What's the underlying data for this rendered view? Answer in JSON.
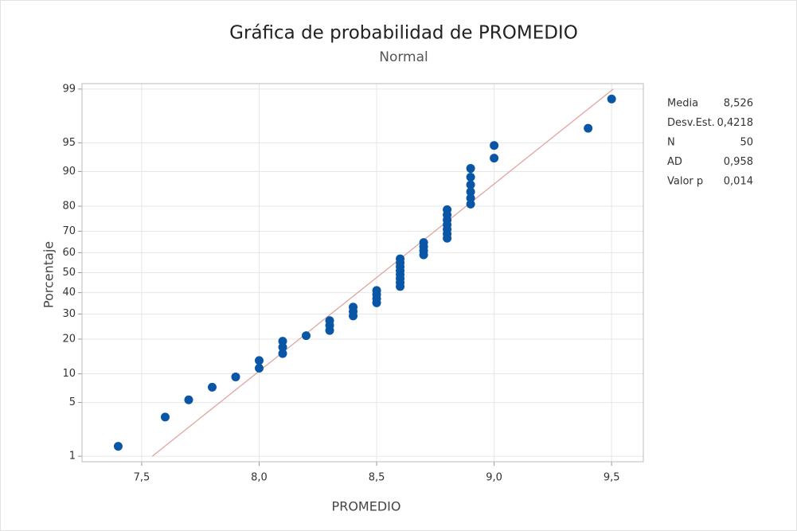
{
  "chart_data": {
    "type": "probability",
    "title": "Gráfica de probabilidad de PROMEDIO",
    "subtitle": "Normal",
    "x_label": "PROMEDIO",
    "y_label": "Porcentaje",
    "x": [
      7.4,
      7.6,
      7.7,
      7.8,
      7.9,
      8.0,
      8.0,
      8.1,
      8.1,
      8.1,
      8.2,
      8.3,
      8.3,
      8.3,
      8.4,
      8.4,
      8.4,
      8.5,
      8.5,
      8.5,
      8.5,
      8.6,
      8.6,
      8.6,
      8.6,
      8.6,
      8.6,
      8.6,
      8.6,
      8.7,
      8.7,
      8.7,
      8.7,
      8.8,
      8.8,
      8.8,
      8.8,
      8.8,
      8.8,
      8.8,
      8.9,
      8.9,
      8.9,
      8.9,
      8.9,
      8.9,
      9.0,
      9.0,
      9.4,
      9.5
    ],
    "values": [
      1.39,
      3.37,
      5.36,
      7.34,
      9.33,
      11.31,
      13.29,
      15.28,
      17.26,
      19.25,
      21.23,
      23.21,
      25.2,
      27.18,
      29.17,
      31.15,
      33.13,
      35.12,
      37.1,
      39.09,
      41.07,
      43.06,
      45.04,
      47.02,
      49.01,
      50.99,
      52.98,
      54.96,
      56.94,
      58.93,
      60.91,
      62.9,
      64.88,
      66.87,
      68.85,
      70.83,
      72.82,
      74.8,
      76.79,
      78.77,
      80.75,
      82.74,
      84.72,
      86.71,
      88.69,
      90.67,
      92.66,
      94.64,
      96.63,
      98.61
    ],
    "color": "#0a56a6",
    "fit_line": {
      "x": [
        7.545,
        9.507
      ],
      "values": [
        1,
        99
      ],
      "color": "#e0a4a0"
    },
    "xlim": [
      7.246,
      9.635
    ],
    "xticks": [
      {
        "value": 7.5,
        "label": "7,5"
      },
      {
        "value": 8.0,
        "label": "8,0"
      },
      {
        "value": 8.5,
        "label": "8,5"
      },
      {
        "value": 9.0,
        "label": "9,0"
      },
      {
        "value": 9.5,
        "label": "9,5"
      }
    ],
    "ylim": [
      0.83,
      99.17
    ],
    "yticks": [
      1,
      5,
      10,
      20,
      30,
      40,
      50,
      60,
      70,
      80,
      90,
      95,
      99
    ],
    "y_scale": "normal-probability",
    "grid": true,
    "stats": [
      [
        "Media",
        "8,526"
      ],
      [
        "Desv.Est.",
        "0,4218"
      ],
      [
        "N",
        "50"
      ],
      [
        "AD",
        "0,958"
      ],
      [
        "Valor p",
        "0,014"
      ]
    ]
  }
}
